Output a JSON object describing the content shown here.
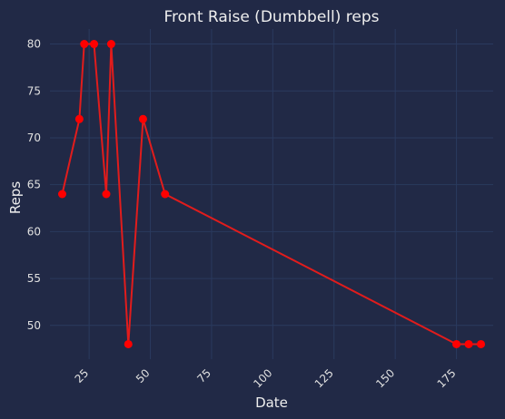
{
  "chart_data": {
    "type": "line",
    "title": "Front Raise (Dumbbell) reps",
    "xlabel": "Date",
    "ylabel": "Reps",
    "x": [
      14,
      21,
      23,
      27,
      32,
      34,
      41,
      47,
      56,
      175,
      180,
      185
    ],
    "values": [
      64,
      72,
      80,
      80,
      64,
      80,
      48,
      72,
      64,
      48,
      48,
      48
    ],
    "xlim": [
      9,
      190
    ],
    "ylim": [
      46.4,
      81.6
    ],
    "xticks": [
      25,
      50,
      75,
      100,
      125,
      150,
      175
    ],
    "yticks": [
      50,
      55,
      60,
      65,
      70,
      75,
      80
    ],
    "grid": true,
    "line_color": "#e11c1c",
    "marker_color": "#ff0000",
    "background_color": "#212946",
    "grid_color": "#2a3a5e"
  }
}
